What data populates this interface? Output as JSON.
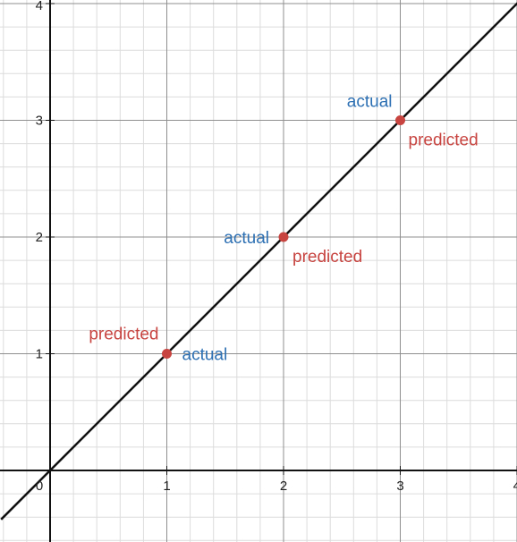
{
  "chart_data": {
    "type": "scatter",
    "title": "",
    "xlabel": "",
    "ylabel": "",
    "xlim": [
      -0.42,
      4.0
    ],
    "ylim": [
      -0.62,
      4.0
    ],
    "grid": true,
    "x_ticks": [
      "0",
      "1",
      "2",
      "3",
      "4"
    ],
    "y_ticks": [
      "1",
      "2",
      "3",
      "4"
    ],
    "line": {
      "slope": 1,
      "intercept": 0,
      "color": "#111111"
    },
    "points": [
      {
        "x": 1,
        "y": 1,
        "label_a": "predicted",
        "label_b": "actual"
      },
      {
        "x": 2,
        "y": 2,
        "label_a": "actual",
        "label_b": "predicted"
      },
      {
        "x": 3,
        "y": 3,
        "label_a": "actual",
        "label_b": "predicted"
      }
    ],
    "colors": {
      "point": "#c74440",
      "predicted": "#c74440",
      "actual": "#2d70b3",
      "major_grid": "#8f8f8f",
      "minor_grid": "#dcdcdc",
      "axis": "#111111"
    }
  }
}
